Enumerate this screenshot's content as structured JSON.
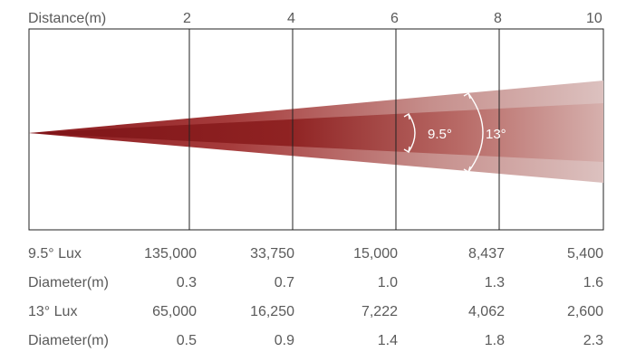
{
  "header": {
    "label": "Distance(m)",
    "distances": [
      "2",
      "4",
      "6",
      "8",
      "10"
    ]
  },
  "beam": {
    "narrow_angle_label": "9.5°",
    "wide_angle_label": "13°",
    "colors": {
      "core": "#8b1a1e",
      "fade": "#d9b8b6",
      "frame": "#222222"
    }
  },
  "table": {
    "rows": [
      {
        "label": "9.5° Lux",
        "values": [
          "135,000",
          "33,750",
          "15,000",
          "8,437",
          "5,400"
        ]
      },
      {
        "label": "Diameter(m)",
        "values": [
          "0.3",
          "0.7",
          "1.0",
          "1.3",
          "1.6"
        ]
      },
      {
        "label": "13° Lux",
        "values": [
          "65,000",
          "16,250",
          "7,222",
          "4,062",
          "2,600"
        ]
      },
      {
        "label": "Diameter(m)",
        "values": [
          "0.5",
          "0.9",
          "1.4",
          "1.8",
          "2.3"
        ]
      }
    ]
  }
}
